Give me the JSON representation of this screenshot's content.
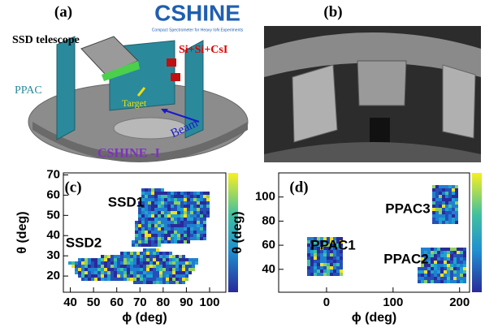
{
  "panel_a": {
    "label": "(a)",
    "logo": "CSHINE",
    "logo_subtitle": "Compact  Spectrometer for Heavy IoN Experiments",
    "annotations": [
      "SSD telescope",
      "Si+Si+CsI",
      "PPAC",
      "Target",
      "Beam",
      "CSHINE -I"
    ]
  },
  "panel_b": {
    "label": "(b)"
  },
  "chart_data": [
    {
      "type": "heatmap",
      "label": "(c)",
      "x_label": "ϕ (deg)",
      "y_label": "θ (deg)",
      "xlim": [
        37,
        107
      ],
      "ylim": [
        12,
        71
      ],
      "xticks": [
        40,
        50,
        60,
        70,
        80,
        90,
        100
      ],
      "yticks": [
        20,
        30,
        40,
        50,
        60,
        70
      ],
      "annotations": [
        "SSD1",
        "SSD2"
      ]
    },
    {
      "type": "heatmap",
      "label": "(d)",
      "x_label": "ϕ (deg)",
      "y_label": "θ (deg)",
      "xlim": [
        -72,
        215
      ],
      "ylim": [
        21,
        120
      ],
      "xticks": [
        0,
        100,
        200
      ],
      "yticks": [
        40,
        60,
        80,
        100
      ],
      "annotations": [
        "PPAC1",
        "PPAC3",
        "PPAC2"
      ]
    }
  ]
}
